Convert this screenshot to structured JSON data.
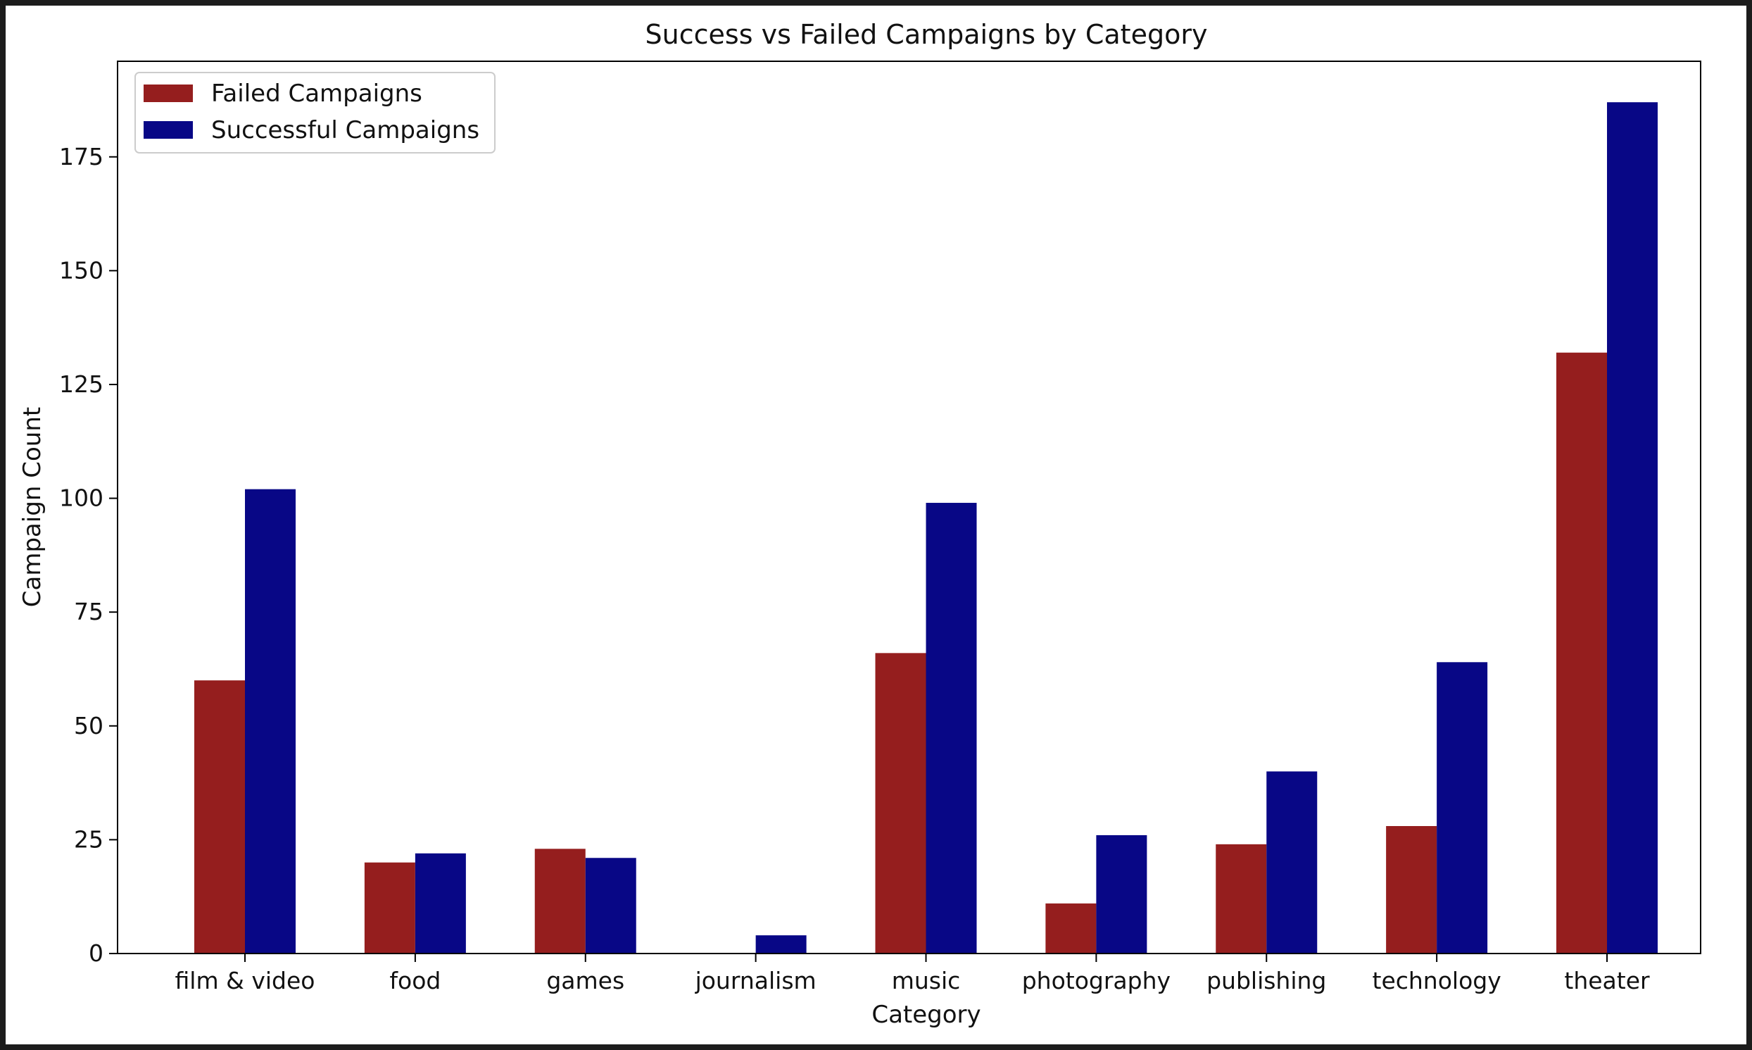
{
  "chart_data": {
    "type": "bar",
    "title": "Success vs Failed Campaigns by Category",
    "xlabel": "Category",
    "ylabel": "Campaign Count",
    "categories": [
      "film & video",
      "food",
      "games",
      "journalism",
      "music",
      "photography",
      "publishing",
      "technology",
      "theater"
    ],
    "series": [
      {
        "name": "Failed Campaigns",
        "color": "#951e1e",
        "values": [
          60,
          20,
          23,
          0,
          66,
          11,
          24,
          28,
          132
        ]
      },
      {
        "name": "Successful Campaigns",
        "color": "#080786",
        "values": [
          102,
          22,
          21,
          4,
          99,
          26,
          40,
          64,
          187
        ]
      }
    ],
    "ylim": [
      0,
      196
    ],
    "yticks": [
      0,
      25,
      50,
      75,
      100,
      125,
      150,
      175
    ],
    "grid": false,
    "legend_position": "top-left"
  }
}
